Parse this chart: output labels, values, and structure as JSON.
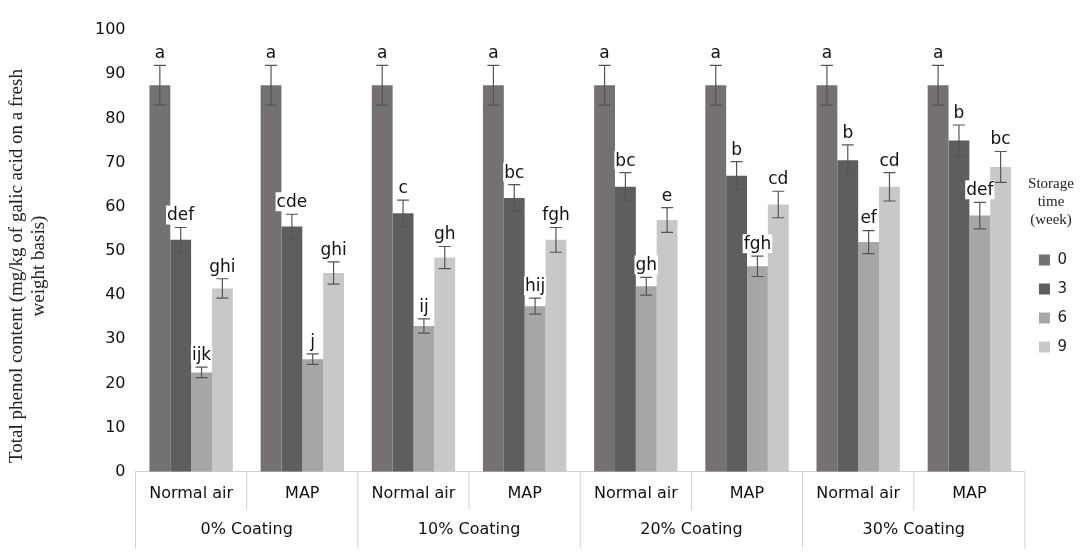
{
  "chart_data": {
    "type": "bar",
    "ylabel": "Total phenol content (mg/kg of galic acid on a fresh weight basis)",
    "legend_title": "Storage time (week)",
    "categories": [
      "Normal air",
      "MAP",
      "Normal air",
      "MAP",
      "Normal air",
      "MAP",
      "Normal air",
      "MAP"
    ],
    "annotations": [
      "0% Coating",
      "10% Coating",
      "20% Coating",
      "30% Coating"
    ],
    "ylim": [
      0,
      100
    ],
    "yticks": [
      0,
      10,
      20,
      30,
      40,
      50,
      60,
      70,
      80,
      90,
      100
    ],
    "grid": false,
    "legend": "right",
    "series": [
      {
        "name": "0",
        "color": "#757171",
        "values": [
          87.5,
          87.5,
          87.5,
          87.5,
          87.5,
          87.5,
          87.5,
          87.5
        ],
        "errors": [
          4.5,
          4.5,
          4.5,
          4.5,
          4.5,
          4.5,
          4.5,
          4.5
        ],
        "value_labels": [
          "a",
          "a",
          "a",
          "a",
          "a",
          "a",
          "a",
          "a"
        ]
      },
      {
        "name": "3",
        "color": "#5e5e5e",
        "values": [
          52.5,
          55.5,
          58.5,
          62,
          64.5,
          67,
          70.5,
          75
        ],
        "errors": [
          2.8,
          2.8,
          3,
          3,
          3.2,
          3.2,
          3.5,
          3.5
        ],
        "value_labels": [
          "def",
          "cde",
          "c",
          "bc",
          "bc",
          "b",
          "b",
          "b"
        ]
      },
      {
        "name": "6",
        "color": "#a6a6a6",
        "values": [
          22.5,
          25.5,
          33,
          37.5,
          42,
          46.5,
          52,
          58
        ],
        "errors": [
          1.2,
          1.2,
          1.6,
          1.8,
          2,
          2.3,
          2.6,
          3
        ],
        "value_labels": [
          "ijk",
          "j",
          "ij",
          "hij",
          "gh",
          "fgh",
          "ef",
          "def"
        ]
      },
      {
        "name": "9",
        "color": "#c8c8c8",
        "values": [
          41.5,
          45,
          48.5,
          52.5,
          57,
          60.5,
          64.5,
          69
        ],
        "errors": [
          2.2,
          2.5,
          2.5,
          2.8,
          2.8,
          3,
          3.2,
          3.5
        ],
        "value_labels": [
          "ghi",
          "ghi",
          "gh",
          "fgh",
          "e",
          "cd",
          "cd",
          "bc"
        ]
      }
    ]
  }
}
